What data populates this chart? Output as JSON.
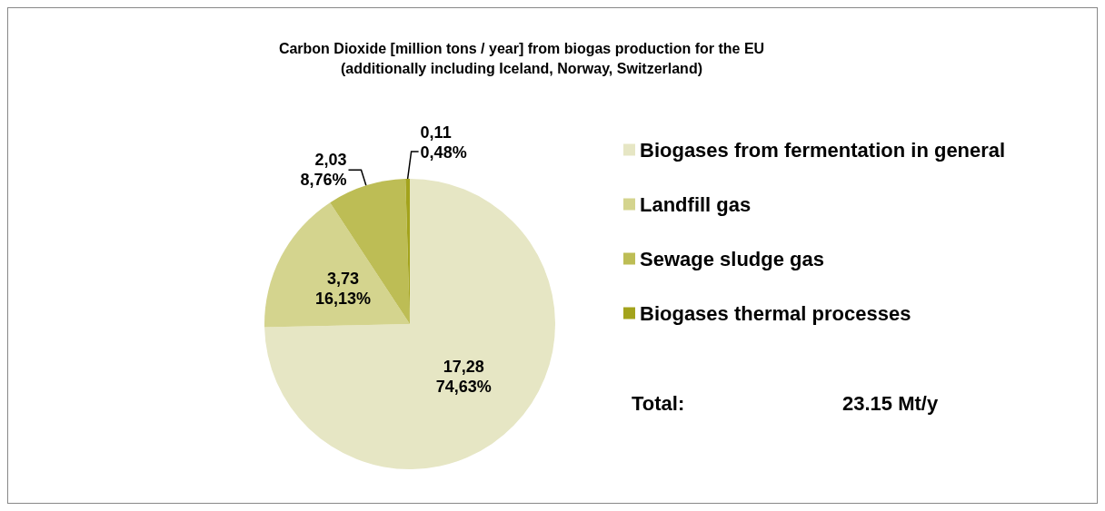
{
  "chart_data": {
    "type": "pie",
    "title": "Carbon Dioxide [million tons / year] from biogas production for the EU\n(additionally including Iceland, Norway, Switzerland)",
    "categories": [
      "Biogases from fermentation in general",
      "Landfill gas",
      "Sewage sludge gas",
      "Biogases thermal processes"
    ],
    "values": [
      17.28,
      3.73,
      2.03,
      0.11
    ],
    "value_labels": [
      "17,28\n74,63%",
      "3,73\n16,13%",
      "2,03\n8,76%",
      "0,11\n0,48%"
    ],
    "colors": [
      "#e6e6c4",
      "#d4d48e",
      "#bdbd55",
      "#a3a31c"
    ],
    "legend": "right",
    "annotations": [
      "Total:",
      "23.15 Mt/y"
    ]
  }
}
